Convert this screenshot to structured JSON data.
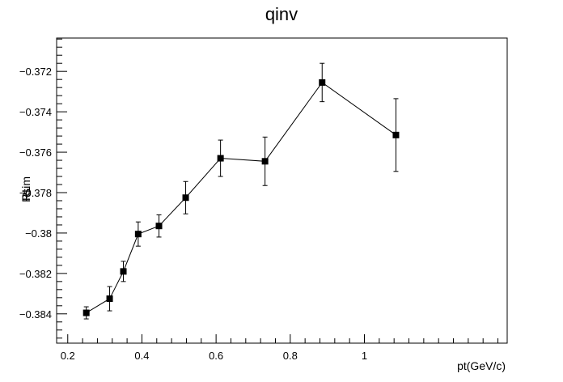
{
  "chart_data": {
    "type": "scatter",
    "title": "qinv",
    "xlabel": "pt(GeV/c)",
    "ylabel": "RL",
    "ylabel_overlap": "Rsim",
    "xlim": [
      0.17,
      1.385
    ],
    "ylim": [
      -0.38545,
      -0.37035
    ],
    "x_ticks": [
      {
        "value": 0.2,
        "label": "0.2"
      },
      {
        "value": 0.4,
        "label": "0.4"
      },
      {
        "value": 0.6,
        "label": "0.6"
      },
      {
        "value": 0.8,
        "label": "0.8"
      },
      {
        "value": 1.0,
        "label": "1"
      }
    ],
    "y_ticks": [
      {
        "value": -0.372,
        "label": "−0.372"
      },
      {
        "value": -0.374,
        "label": "−0.374"
      },
      {
        "value": -0.376,
        "label": "−0.376"
      },
      {
        "value": -0.378,
        "label": "−0.378"
      },
      {
        "value": -0.38,
        "label": "−0.38"
      },
      {
        "value": -0.382,
        "label": "−0.382"
      },
      {
        "value": -0.384,
        "label": "−0.384"
      }
    ],
    "grid": false,
    "connect_points": true,
    "marker": "square",
    "series": [
      {
        "points": [
          {
            "x": 0.25,
            "y": -0.38395,
            "err": 0.0003
          },
          {
            "x": 0.313,
            "y": -0.38325,
            "err": 0.0006
          },
          {
            "x": 0.35,
            "y": -0.3819,
            "err": 0.0005
          },
          {
            "x": 0.39,
            "y": -0.38005,
            "err": 0.0006
          },
          {
            "x": 0.446,
            "y": -0.37965,
            "err": 0.00055
          },
          {
            "x": 0.518,
            "y": -0.37825,
            "err": 0.0008
          },
          {
            "x": 0.612,
            "y": -0.3763,
            "err": 0.0009
          },
          {
            "x": 0.732,
            "y": -0.37645,
            "err": 0.0012
          },
          {
            "x": 0.886,
            "y": -0.37255,
            "err": 0.00095
          },
          {
            "x": 1.085,
            "y": -0.37515,
            "err": 0.0018
          }
        ]
      }
    ]
  }
}
